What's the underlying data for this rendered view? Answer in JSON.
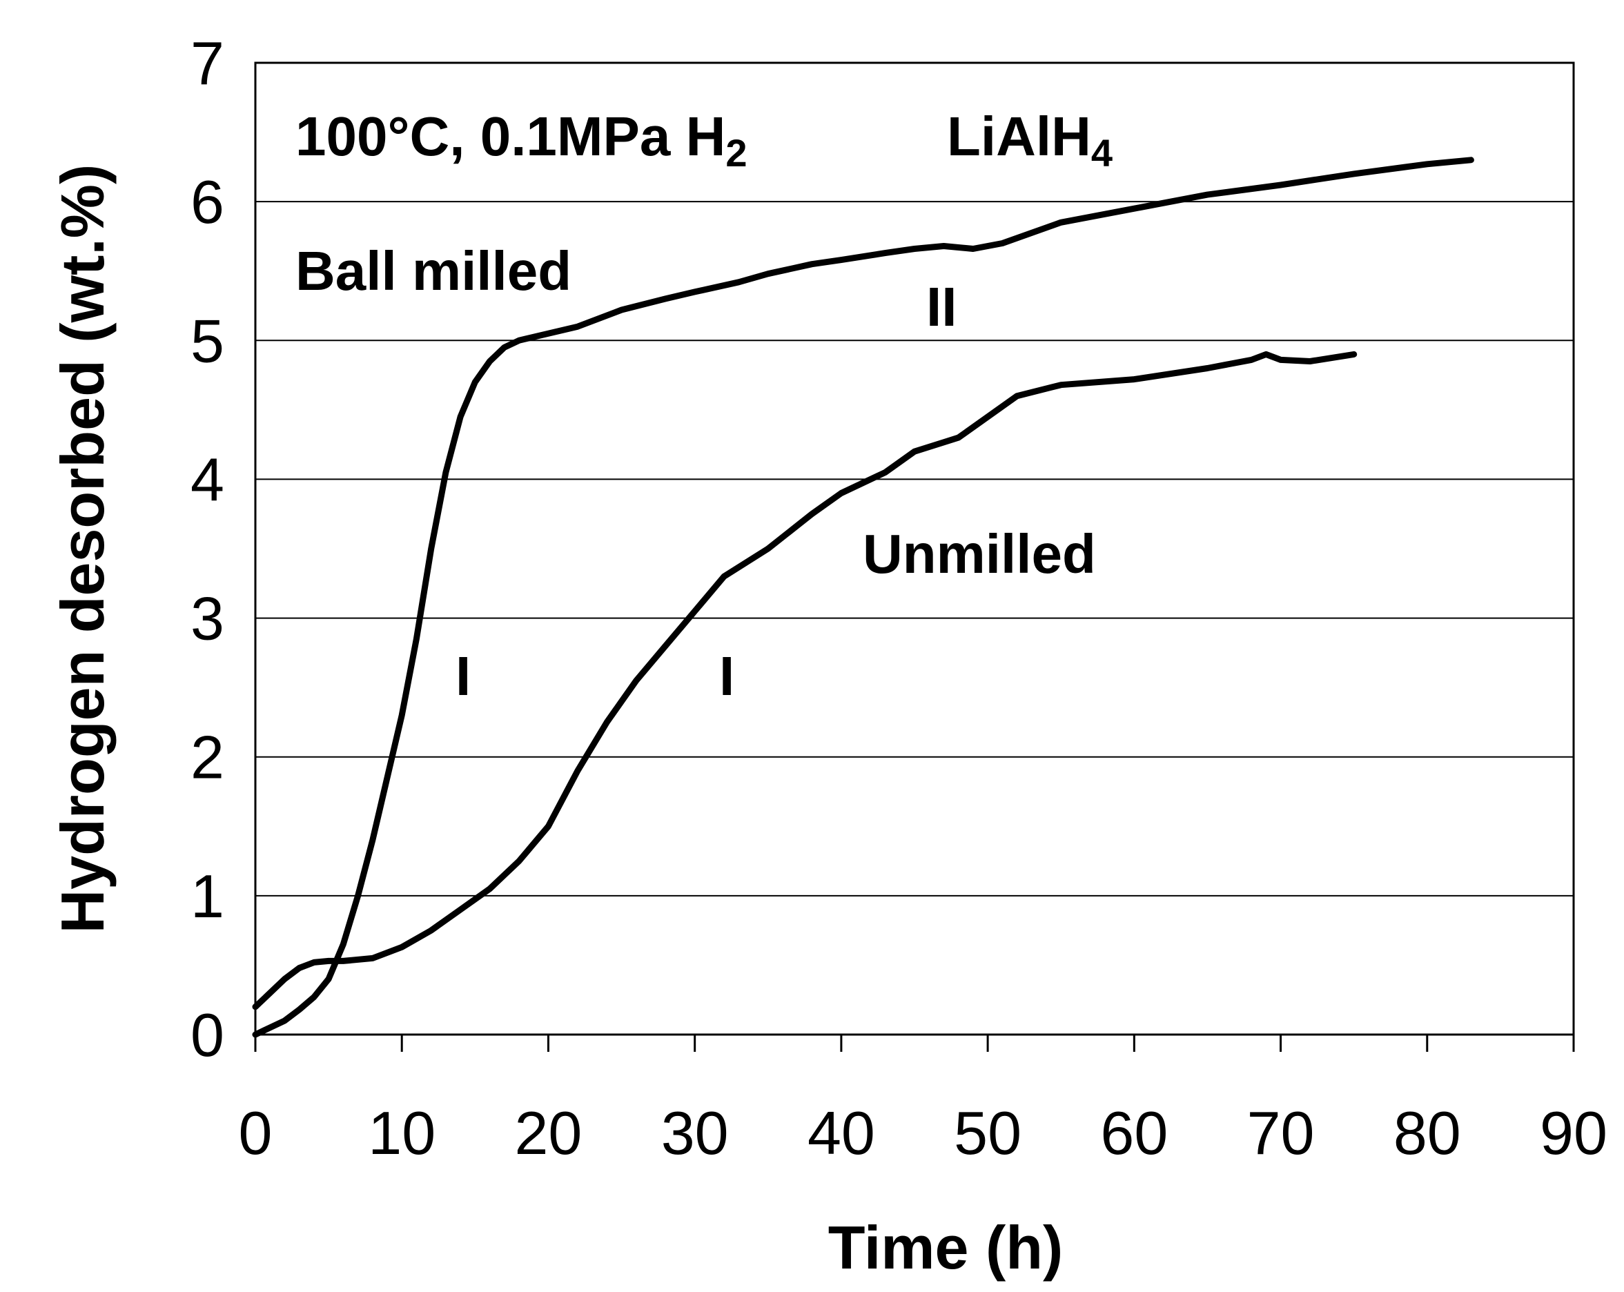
{
  "chart_data": {
    "type": "line",
    "title": "",
    "xlabel": "Time (h)",
    "ylabel": "Hydrogen desorbed (wt.%)",
    "xlim": [
      0,
      90
    ],
    "ylim": [
      0,
      7
    ],
    "x_ticks": [
      0,
      10,
      20,
      30,
      40,
      50,
      60,
      70,
      80,
      90
    ],
    "y_ticks": [
      0,
      1,
      2,
      3,
      4,
      5,
      6,
      7
    ],
    "grid": "horizontal",
    "series": [
      {
        "name": "Ball milled",
        "x": [
          0,
          1,
          2,
          3,
          4,
          5,
          6,
          7,
          8,
          9,
          10,
          11,
          12,
          13,
          14,
          15,
          16,
          17,
          18,
          20,
          22,
          25,
          28,
          30,
          33,
          35,
          38,
          40,
          43,
          45,
          47,
          49,
          51,
          55,
          60,
          65,
          70,
          75,
          80,
          83
        ],
        "y": [
          0.0,
          0.05,
          0.1,
          0.18,
          0.27,
          0.4,
          0.65,
          1.0,
          1.4,
          1.85,
          2.3,
          2.85,
          3.5,
          4.05,
          4.45,
          4.7,
          4.85,
          4.95,
          5.0,
          5.05,
          5.1,
          5.22,
          5.3,
          5.35,
          5.42,
          5.48,
          5.55,
          5.58,
          5.63,
          5.66,
          5.68,
          5.66,
          5.7,
          5.85,
          5.95,
          6.05,
          6.12,
          6.2,
          6.27,
          6.3
        ]
      },
      {
        "name": "Unmilled",
        "x": [
          0,
          1,
          2,
          3,
          4,
          5,
          6,
          8,
          10,
          12,
          14,
          16,
          18,
          20,
          22,
          24,
          26,
          28,
          30,
          32,
          35,
          38,
          40,
          43,
          45,
          48,
          50,
          52,
          55,
          60,
          65,
          68,
          69,
          70,
          72,
          75
        ],
        "y": [
          0.2,
          0.3,
          0.4,
          0.48,
          0.52,
          0.53,
          0.53,
          0.55,
          0.63,
          0.75,
          0.9,
          1.05,
          1.25,
          1.5,
          1.9,
          2.25,
          2.55,
          2.8,
          3.05,
          3.3,
          3.5,
          3.75,
          3.9,
          4.05,
          4.2,
          4.3,
          4.45,
          4.6,
          4.68,
          4.72,
          4.8,
          4.86,
          4.9,
          4.86,
          4.85,
          4.9
        ]
      }
    ],
    "annotations": {
      "condition_main": "100°C, 0.1MPa H",
      "condition_sub": "2",
      "compound_main": "LiAlH",
      "compound_sub": "4",
      "ball_milled": "Ball milled",
      "unmilled": "Unmilled",
      "stage_ball_milled_I": "I",
      "stage_unmilled_I": "I",
      "stage_II": "II"
    }
  }
}
